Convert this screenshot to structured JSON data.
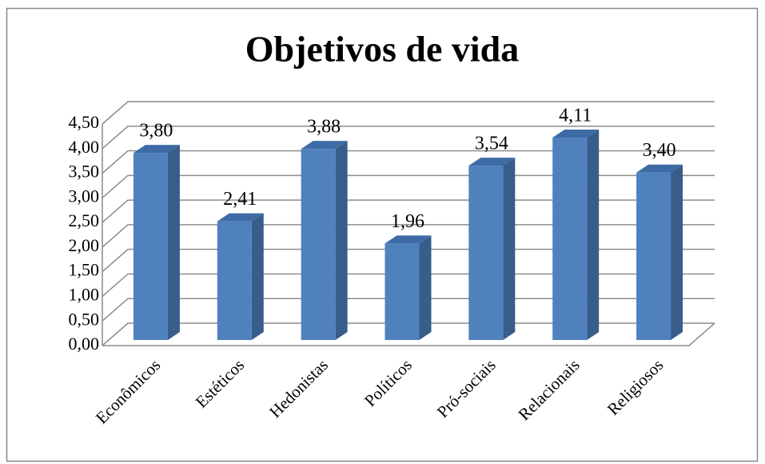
{
  "chart_data": {
    "type": "bar3d",
    "title": "Objetivos de vida",
    "categories": [
      "Econômicos",
      "Estéticos",
      "Hedonistas",
      "Políticos",
      "Pró-sociais",
      "Relacionais",
      "Religiosos"
    ],
    "values": [
      3.8,
      2.41,
      3.88,
      1.96,
      3.54,
      4.11,
      3.4
    ],
    "value_labels": [
      "3,80",
      "2,41",
      "3,88",
      "1,96",
      "3,54",
      "4,11",
      "3,40"
    ],
    "color": "#4f81bd",
    "ylim": [
      0,
      4.5
    ],
    "yticks": [
      {
        "value": 0,
        "label": "0,00"
      },
      {
        "value": 0.5,
        "label": "0,50"
      },
      {
        "value": 1,
        "label": "1,00"
      },
      {
        "value": 1.5,
        "label": "1,50"
      },
      {
        "value": 2,
        "label": "2,00"
      },
      {
        "value": 2.5,
        "label": "2,50"
      },
      {
        "value": 3,
        "label": "3,00"
      },
      {
        "value": 3.5,
        "label": "3,50"
      },
      {
        "value": 4,
        "label": "4,00"
      },
      {
        "value": 4.5,
        "label": "4,50"
      }
    ],
    "grid": true
  }
}
